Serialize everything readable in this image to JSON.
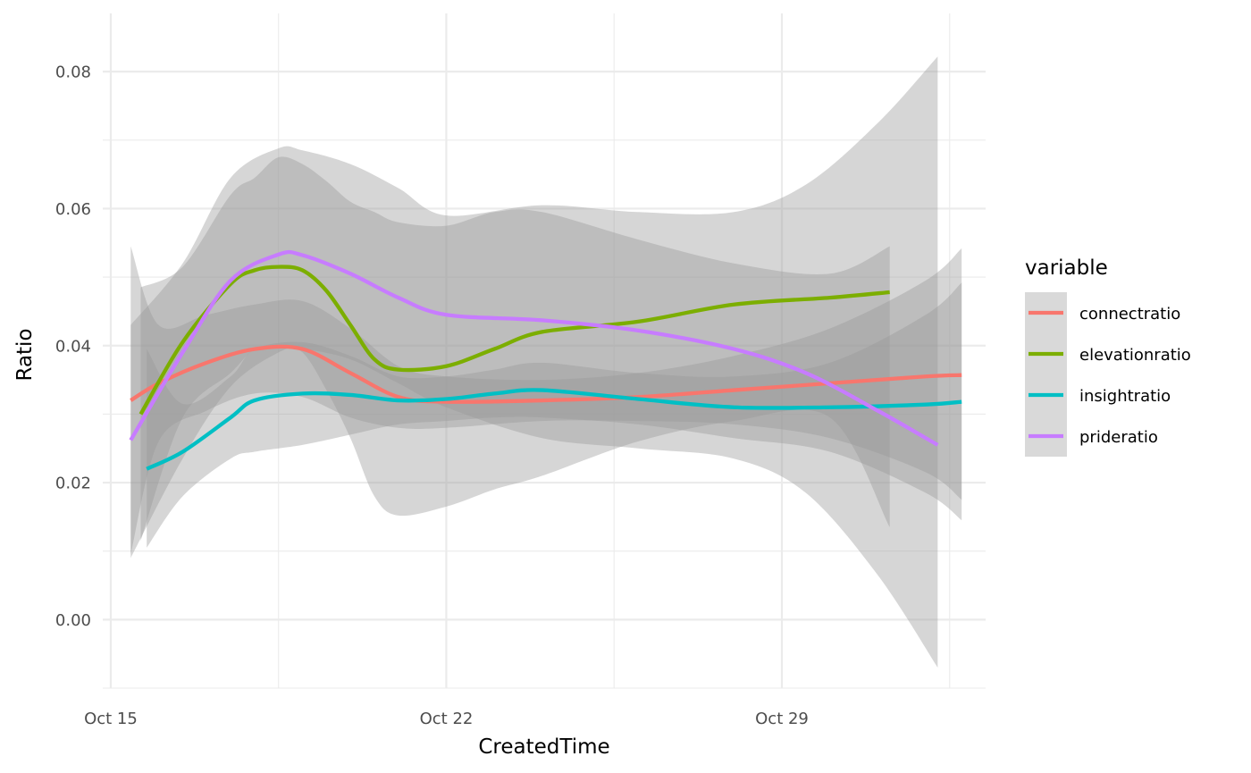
{
  "chart_data": {
    "type": "line",
    "xlabel": "CreatedTime",
    "ylabel": "Ratio",
    "x_ticks": [
      "Oct 15",
      "Oct 22",
      "Oct 29"
    ],
    "y_ticks": [
      "0.00",
      "0.02",
      "0.04",
      "0.06",
      "0.08"
    ],
    "xlim": [
      "2023-10-14T20:00",
      "2023-11-02T06:00"
    ],
    "ylim": [
      -0.01,
      0.0885
    ],
    "grid": true,
    "legend": {
      "title": "variable",
      "position": "right"
    },
    "series": [
      {
        "name": "connectratio",
        "color": "#F8766D",
        "points": [
          [
            "2023-10-15T10:00",
            0.032,
            0.0095,
            0.0545
          ],
          [
            "2023-10-16T00:00",
            0.0345,
            0.026,
            0.043
          ],
          [
            "2023-10-17T00:00",
            0.0375,
            0.0305,
            0.0445
          ],
          [
            "2023-10-18T00:00",
            0.0395,
            0.033,
            0.046
          ],
          [
            "2023-10-19T00:00",
            0.0395,
            0.0325,
            0.0465
          ],
          [
            "2023-10-20T00:00",
            0.036,
            0.0295,
            0.0425
          ],
          [
            "2023-10-21T00:00",
            0.0325,
            0.028,
            0.037
          ],
          [
            "2023-10-22T00:00",
            0.0318,
            0.028,
            0.0355
          ],
          [
            "2023-10-24T00:00",
            0.032,
            0.029,
            0.035
          ],
          [
            "2023-10-26T00:00",
            0.0325,
            0.029,
            0.036
          ],
          [
            "2023-10-28T00:00",
            0.0335,
            0.0285,
            0.0385
          ],
          [
            "2023-10-30T00:00",
            0.0345,
            0.0265,
            0.0425
          ],
          [
            "2023-11-01T00:00",
            0.0355,
            0.0215,
            0.0495
          ],
          [
            "2023-11-01T18:00",
            0.0357,
            0.0175,
            0.0542
          ]
        ]
      },
      {
        "name": "elevationratio",
        "color": "#7CAE00",
        "points": [
          [
            "2023-10-15T15:00",
            0.03,
            0.0115,
            0.0485
          ],
          [
            "2023-10-16T12:00",
            0.0405,
            0.0295,
            0.0515
          ],
          [
            "2023-10-17T12:00",
            0.049,
            0.036,
            0.062
          ],
          [
            "2023-10-18T00:00",
            0.051,
            0.0395,
            0.0645
          ],
          [
            "2023-10-18T12:00",
            0.0515,
            0.04,
            0.0675
          ],
          [
            "2023-10-19T00:00",
            0.051,
            0.039,
            0.0665
          ],
          [
            "2023-10-19T12:00",
            0.048,
            0.0335,
            0.064
          ],
          [
            "2023-10-20T00:00",
            0.043,
            0.0265,
            0.061
          ],
          [
            "2023-10-20T12:00",
            0.038,
            0.018,
            0.0595
          ],
          [
            "2023-10-21T00:00",
            0.0365,
            0.0152,
            0.058
          ],
          [
            "2023-10-22T00:00",
            0.037,
            0.0165,
            0.0575
          ],
          [
            "2023-10-23T00:00",
            0.0395,
            0.019,
            0.0595
          ],
          [
            "2023-10-24T00:00",
            0.042,
            0.021,
            0.0595
          ],
          [
            "2023-10-26T00:00",
            0.0435,
            0.026,
            0.0555
          ],
          [
            "2023-10-28T00:00",
            0.046,
            0.029,
            0.052
          ],
          [
            "2023-10-30T00:00",
            0.047,
            0.0295,
            0.0505
          ],
          [
            "2023-10-31T06:00",
            0.0478,
            0.0135,
            0.0545
          ]
        ]
      },
      {
        "name": "insightratio",
        "color": "#00BFC4",
        "points": [
          [
            "2023-10-15T18:00",
            0.022,
            0.0105,
            0.0395
          ],
          [
            "2023-10-16T12:00",
            0.0245,
            0.018,
            0.0315
          ],
          [
            "2023-10-17T12:00",
            0.0295,
            0.0235,
            0.0355
          ],
          [
            "2023-10-18T00:00",
            0.032,
            0.0245,
            0.0395
          ],
          [
            "2023-10-19T00:00",
            0.033,
            0.0255,
            0.0405
          ],
          [
            "2023-10-20T00:00",
            0.0328,
            0.027,
            0.0385
          ],
          [
            "2023-10-21T00:00",
            0.032,
            0.0285,
            0.0355
          ],
          [
            "2023-10-22T00:00",
            0.0322,
            0.029,
            0.0355
          ],
          [
            "2023-10-23T00:00",
            0.033,
            0.0295,
            0.0365
          ],
          [
            "2023-10-24T00:00",
            0.0335,
            0.0295,
            0.0375
          ],
          [
            "2023-10-26T00:00",
            0.0322,
            0.0285,
            0.036
          ],
          [
            "2023-10-28T00:00",
            0.031,
            0.0265,
            0.0355
          ],
          [
            "2023-10-30T00:00",
            0.031,
            0.0245,
            0.0375
          ],
          [
            "2023-11-01T00:00",
            0.0314,
            0.0185,
            0.0445
          ],
          [
            "2023-11-01T18:00",
            0.0318,
            0.0145,
            0.0492
          ]
        ]
      },
      {
        "name": "prideratio",
        "color": "#C77CFF",
        "points": [
          [
            "2023-10-15T10:00",
            0.0262,
            0.009,
            0.043
          ],
          [
            "2023-10-16T12:00",
            0.039,
            0.0235,
            0.052
          ],
          [
            "2023-10-17T12:00",
            0.0495,
            0.034,
            0.0645
          ],
          [
            "2023-10-18T12:00",
            0.0533,
            0.039,
            0.0688
          ],
          [
            "2023-10-19T00:00",
            0.0532,
            0.0395,
            0.0685
          ],
          [
            "2023-10-20T00:00",
            0.0505,
            0.038,
            0.0665
          ],
          [
            "2023-10-21T00:00",
            0.047,
            0.0345,
            0.063
          ],
          [
            "2023-10-22T00:00",
            0.0445,
            0.031,
            0.059
          ],
          [
            "2023-10-24T00:00",
            0.0437,
            0.0265,
            0.0605
          ],
          [
            "2023-10-26T00:00",
            0.0422,
            0.025,
            0.0595
          ],
          [
            "2023-10-28T00:00",
            0.0395,
            0.0235,
            0.0595
          ],
          [
            "2023-10-29T12:00",
            0.036,
            0.0185,
            0.0635
          ],
          [
            "2023-10-31T00:00",
            0.0305,
            0.0065,
            0.0725
          ],
          [
            "2023-11-01T06:00",
            0.0255,
            -0.007,
            0.0822
          ]
        ]
      }
    ]
  }
}
